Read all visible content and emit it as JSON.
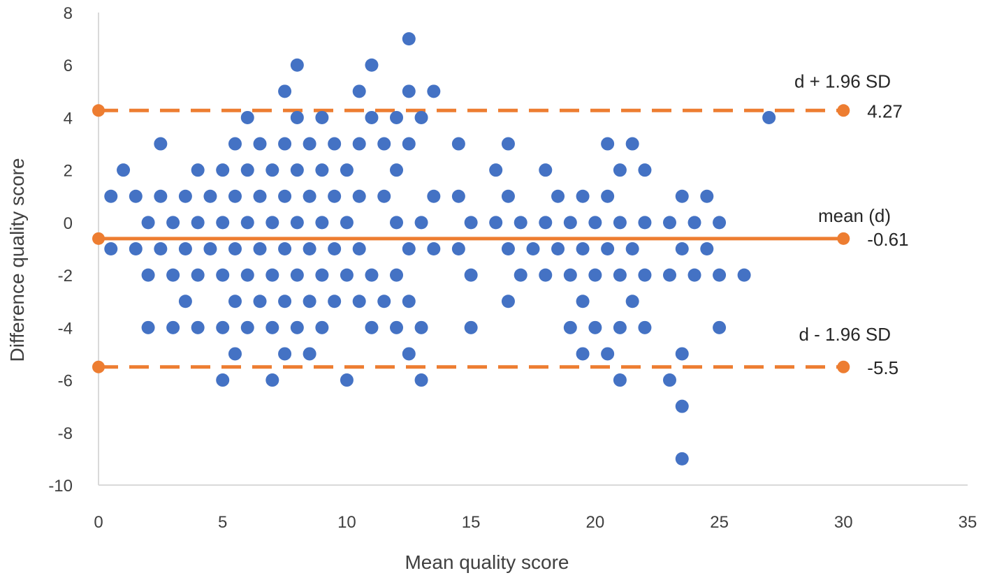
{
  "chart_data": {
    "type": "scatter",
    "title": "",
    "xlabel": "Mean quality score",
    "ylabel": "Difference quality score",
    "xlim": [
      0,
      35
    ],
    "ylim": [
      -10,
      8
    ],
    "x_ticks": [
      "0",
      "5",
      "10",
      "15",
      "20",
      "25",
      "30",
      "35"
    ],
    "y_ticks": [
      "8",
      "6",
      "4",
      "2",
      "0",
      "-2",
      "-4",
      "-6",
      "-8",
      "-10"
    ],
    "grid": false,
    "colors": {
      "points": "#4472C4",
      "lines": "#ED7D31",
      "axis": "#D9D9D9",
      "text": "#404040"
    },
    "series": [
      {
        "points": [
          [
            0.5,
            1
          ],
          [
            0.5,
            -1
          ],
          [
            1,
            2
          ],
          [
            1.5,
            1
          ],
          [
            1.5,
            -1
          ],
          [
            2,
            0
          ],
          [
            2,
            -2
          ],
          [
            2,
            -4
          ],
          [
            2.5,
            3
          ],
          [
            2.5,
            1
          ],
          [
            2.5,
            -1
          ],
          [
            3,
            0
          ],
          [
            3,
            -2
          ],
          [
            3,
            -4
          ],
          [
            3.5,
            1
          ],
          [
            3.5,
            -1
          ],
          [
            3.5,
            -3
          ],
          [
            4,
            2
          ],
          [
            4,
            0
          ],
          [
            4,
            -2
          ],
          [
            4,
            -4
          ],
          [
            4.5,
            1
          ],
          [
            4.5,
            -1
          ],
          [
            5,
            2
          ],
          [
            5,
            0
          ],
          [
            5,
            -2
          ],
          [
            5,
            -4
          ],
          [
            5,
            -6
          ],
          [
            5.5,
            3
          ],
          [
            5.5,
            1
          ],
          [
            5.5,
            -1
          ],
          [
            5.5,
            -3
          ],
          [
            5.5,
            -5
          ],
          [
            6,
            4
          ],
          [
            6,
            2
          ],
          [
            6,
            0
          ],
          [
            6,
            -2
          ],
          [
            6,
            -4
          ],
          [
            6.5,
            3
          ],
          [
            6.5,
            1
          ],
          [
            6.5,
            -1
          ],
          [
            6.5,
            -3
          ],
          [
            7,
            2
          ],
          [
            7,
            0
          ],
          [
            7,
            -2
          ],
          [
            7,
            -4
          ],
          [
            7,
            -6
          ],
          [
            7.5,
            5
          ],
          [
            7.5,
            3
          ],
          [
            7.5,
            1
          ],
          [
            7.5,
            -1
          ],
          [
            7.5,
            -3
          ],
          [
            7.5,
            -5
          ],
          [
            8,
            6
          ],
          [
            8,
            4
          ],
          [
            8,
            2
          ],
          [
            8,
            0
          ],
          [
            8,
            -2
          ],
          [
            8,
            -4
          ],
          [
            8.5,
            3
          ],
          [
            8.5,
            1
          ],
          [
            8.5,
            -1
          ],
          [
            8.5,
            -3
          ],
          [
            8.5,
            -5
          ],
          [
            9,
            4
          ],
          [
            9,
            2
          ],
          [
            9,
            0
          ],
          [
            9,
            -2
          ],
          [
            9,
            -4
          ],
          [
            9.5,
            3
          ],
          [
            9.5,
            1
          ],
          [
            9.5,
            -1
          ],
          [
            9.5,
            -3
          ],
          [
            10,
            2
          ],
          [
            10,
            0
          ],
          [
            10,
            -2
          ],
          [
            10,
            -6
          ],
          [
            10.5,
            5
          ],
          [
            10.5,
            3
          ],
          [
            10.5,
            1
          ],
          [
            10.5,
            -1
          ],
          [
            10.5,
            -3
          ],
          [
            11,
            6
          ],
          [
            11,
            4
          ],
          [
            11,
            -2
          ],
          [
            11,
            -4
          ],
          [
            11.5,
            3
          ],
          [
            11.5,
            1
          ],
          [
            11.5,
            -3
          ],
          [
            12,
            4
          ],
          [
            12,
            2
          ],
          [
            12,
            0
          ],
          [
            12,
            -2
          ],
          [
            12,
            -4
          ],
          [
            12.5,
            7
          ],
          [
            12.5,
            5
          ],
          [
            12.5,
            3
          ],
          [
            12.5,
            -1
          ],
          [
            12.5,
            -3
          ],
          [
            12.5,
            -5
          ],
          [
            13,
            4
          ],
          [
            13,
            0
          ],
          [
            13,
            -4
          ],
          [
            13,
            -6
          ],
          [
            13.5,
            5
          ],
          [
            13.5,
            1
          ],
          [
            13.5,
            -1
          ],
          [
            14.5,
            3
          ],
          [
            14.5,
            1
          ],
          [
            14.5,
            -1
          ],
          [
            15,
            0
          ],
          [
            15,
            -2
          ],
          [
            15,
            -4
          ],
          [
            16,
            2
          ],
          [
            16,
            0
          ],
          [
            16.5,
            3
          ],
          [
            16.5,
            1
          ],
          [
            16.5,
            -1
          ],
          [
            16.5,
            -3
          ],
          [
            17,
            0
          ],
          [
            17,
            -2
          ],
          [
            17.5,
            -1
          ],
          [
            18,
            2
          ],
          [
            18,
            0
          ],
          [
            18,
            -2
          ],
          [
            18.5,
            1
          ],
          [
            18.5,
            -1
          ],
          [
            19,
            0
          ],
          [
            19,
            -2
          ],
          [
            19,
            -4
          ],
          [
            19.5,
            1
          ],
          [
            19.5,
            -1
          ],
          [
            19.5,
            -3
          ],
          [
            19.5,
            -5
          ],
          [
            20,
            0
          ],
          [
            20,
            -2
          ],
          [
            20,
            -4
          ],
          [
            20.5,
            3
          ],
          [
            20.5,
            1
          ],
          [
            20.5,
            -1
          ],
          [
            20.5,
            -5
          ],
          [
            21,
            2
          ],
          [
            21,
            0
          ],
          [
            21,
            -2
          ],
          [
            21,
            -4
          ],
          [
            21,
            -6
          ],
          [
            21.5,
            3
          ],
          [
            21.5,
            -1
          ],
          [
            21.5,
            -3
          ],
          [
            22,
            2
          ],
          [
            22,
            0
          ],
          [
            22,
            -2
          ],
          [
            22,
            -4
          ],
          [
            23,
            0
          ],
          [
            23,
            -2
          ],
          [
            23,
            -6
          ],
          [
            23.5,
            1
          ],
          [
            23.5,
            -1
          ],
          [
            23.5,
            -5
          ],
          [
            23.5,
            -7
          ],
          [
            23.5,
            -9
          ],
          [
            24,
            0
          ],
          [
            24,
            -2
          ],
          [
            24.5,
            1
          ],
          [
            24.5,
            -1
          ],
          [
            25,
            0
          ],
          [
            25,
            -2
          ],
          [
            25,
            -4
          ],
          [
            26,
            -2
          ],
          [
            27,
            4
          ]
        ]
      }
    ],
    "reference_lines": [
      {
        "label": "d + 1.96 SD",
        "value": 4.27,
        "value_label": "4.27",
        "style": "dashed",
        "x_start": 0,
        "x_end": 30
      },
      {
        "label": "mean (d)",
        "value": -0.61,
        "value_label": "-0.61",
        "style": "solid",
        "x_start": 0,
        "x_end": 30
      },
      {
        "label": "d - 1.96 SD",
        "value": -5.5,
        "value_label": "-5.5",
        "style": "dashed",
        "x_start": 0,
        "x_end": 30
      }
    ]
  }
}
